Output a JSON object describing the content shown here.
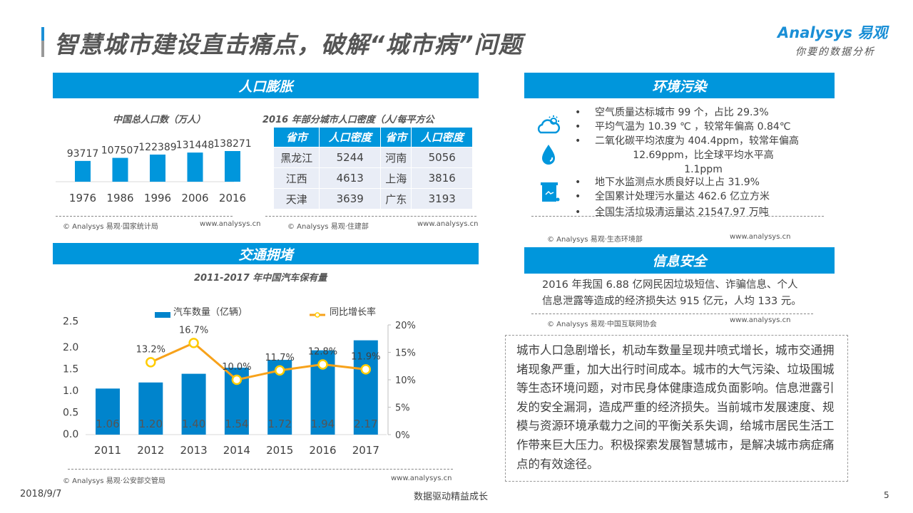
{
  "header": {
    "title": "智慧城市建设直击痛点，破解“城市病”问题",
    "logo_brand": "Analysys 易观",
    "logo_tagline": "你要的数据分析"
  },
  "sections": {
    "population": "人口膨胀",
    "environment": "环境污染",
    "traffic": "交通拥堵",
    "security": "信息安全"
  },
  "population_source": "© Analysys 易观·国家统计局",
  "density_source": "© Analysys 易观·住建部",
  "traffic_source": "© Analysys 易观·公安部交管局",
  "environment_source": "© Analysys 易观·生态环境部",
  "security_source": "© Analysys 易观·中国互联网协会",
  "website": "www.analysys.cn",
  "density_table": {
    "title": "2016 年部分城市人口密度（人/每平方公",
    "headers": [
      "省市",
      "人口密度",
      "省市",
      "人口密度"
    ],
    "rows": [
      [
        "黑龙江",
        "5244",
        "河南",
        "5056"
      ],
      [
        "江西",
        "4613",
        "上海",
        "3816"
      ],
      [
        "天津",
        "3639",
        "广东",
        "3193"
      ]
    ]
  },
  "environment": {
    "icons": [
      "weather-cloud-sun-icon",
      "water-drop-icon",
      "trash-bin-icon"
    ],
    "items": [
      "空气质量达标城市 99 个，占比 29.3%",
      "平均气温为 10.39 ℃ ，较常年偏高 0.84℃",
      "二氧化碳平均浓度为 404.4ppm，较常年偏高",
      "12.69ppm，比全球平均水平高",
      "1.1ppm",
      "地下水监测点水质良好以上占 31.9%",
      "全国累计处理污水量达 462.6 亿立方米",
      "全国生活垃圾清运量达 21547.97 万吨"
    ]
  },
  "security": {
    "text1": "2016 年我国 6.88 亿网民因垃圾短信、诈骗信息、个人",
    "text2": "信息泄露等造成的经济损失达 915 亿元，人均 133 元。"
  },
  "summary": "城市人口急剧增长，机动车数量呈现井喷式增长，城市交通拥堵现象严重，加大出行时间成本。城市的大气污染、垃圾围城等生态环境问题，对市民身体健康造成负面影响。信息泄露引发的安全漏洞，造成严重的经济损失。当前城市发展速度、规模与资源环境承载力之间的平衡关系失调，给城市居民生活工作带来巨大压力。积极探索发展智慧城市，是解决城市病症痛点的有效途径。",
  "footer": {
    "date": "2018/9/7",
    "slogan": "数据驱动精益成长",
    "page": "5"
  },
  "colors": {
    "accent": "#0096dc",
    "bar": "#0084cc",
    "line": "#f7a21b"
  },
  "chart_data": [
    {
      "type": "bar",
      "title": "中国总人口数（万人）",
      "categories": [
        "1976",
        "1986",
        "1996",
        "2006",
        "2016"
      ],
      "values": [
        93717,
        107507,
        122389,
        131448,
        138271
      ]
    },
    {
      "type": "bar+line",
      "title": "2011-2017 年中国汽车保有量",
      "categories": [
        "2011",
        "2012",
        "2013",
        "2014",
        "2015",
        "2016",
        "2017"
      ],
      "series": [
        {
          "name": "汽车数量（亿辆）",
          "type": "bar",
          "axis": "left",
          "values": [
            1.06,
            1.2,
            1.4,
            1.54,
            1.72,
            1.94,
            2.17
          ]
        },
        {
          "name": "同比增长率",
          "type": "line",
          "axis": "right",
          "values": [
            null,
            13.2,
            16.7,
            10.0,
            11.7,
            12.8,
            11.9
          ],
          "labels": [
            "",
            "13.2%",
            "16.7%",
            "10.0%",
            "11.7%",
            "12.8%",
            "11.9%"
          ]
        }
      ],
      "left_ticks": [
        "0.0",
        "0.5",
        "1.0",
        "1.5",
        "2.0",
        "2.5"
      ],
      "ylim_left": [
        0,
        2.5
      ],
      "right_ticks": [
        "0%",
        "5%",
        "10%",
        "15%",
        "20%"
      ],
      "ylim_right": [
        0,
        20
      ],
      "legend": "top"
    }
  ]
}
